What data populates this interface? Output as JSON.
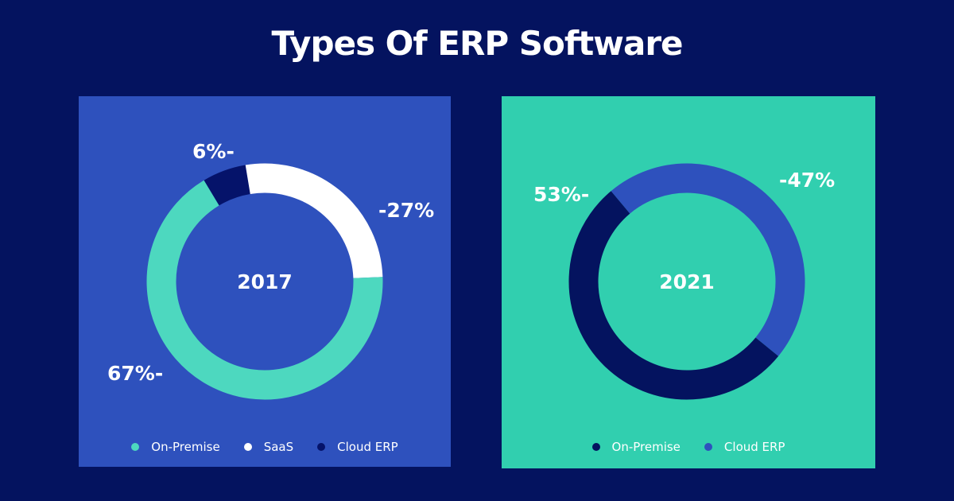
{
  "title": "Types Of ERP Software",
  "colors": {
    "background": "#04135f",
    "on_premise_2017": "#4dd8bf",
    "saas": "#ffffff",
    "cloud_2017": "#05136a",
    "on_premise_2021": "#04135f",
    "cloud_2021": "#2e51bd"
  },
  "chart_data": [
    {
      "type": "pie",
      "variant": "donut",
      "title": "2017",
      "panel_color": "#2e51bd",
      "categories": [
        "On-Premise",
        "SaaS",
        "Cloud ERP"
      ],
      "values": [
        67,
        27,
        6
      ],
      "data_labels": [
        "67%-",
        "-27%",
        "6%-"
      ],
      "colors": [
        "#4dd8bf",
        "#ffffff",
        "#05136a"
      ],
      "label_colors": [
        "#ffffff",
        "#ffffff",
        "#ffffff"
      ],
      "legend": [
        {
          "label": "On-Premise",
          "color": "#4dd8bf"
        },
        {
          "label": "SaaS",
          "color": "#ffffff"
        },
        {
          "label": "Cloud ERP",
          "color": "#05136a"
        }
      ],
      "legend_position": "bottom"
    },
    {
      "type": "pie",
      "variant": "donut",
      "title": "2021",
      "panel_color": "#31cfaf",
      "categories": [
        "On-Premise",
        "Cloud ERP"
      ],
      "values": [
        53,
        47
      ],
      "data_labels": [
        "53%-",
        "-47%"
      ],
      "colors": [
        "#04135f",
        "#2e51bd"
      ],
      "label_colors": [
        "#ffffff",
        "#ffffff"
      ],
      "legend": [
        {
          "label": "On-Premise",
          "color": "#04135f"
        },
        {
          "label": "Cloud ERP",
          "color": "#2e51bd"
        }
      ],
      "legend_position": "bottom"
    }
  ]
}
